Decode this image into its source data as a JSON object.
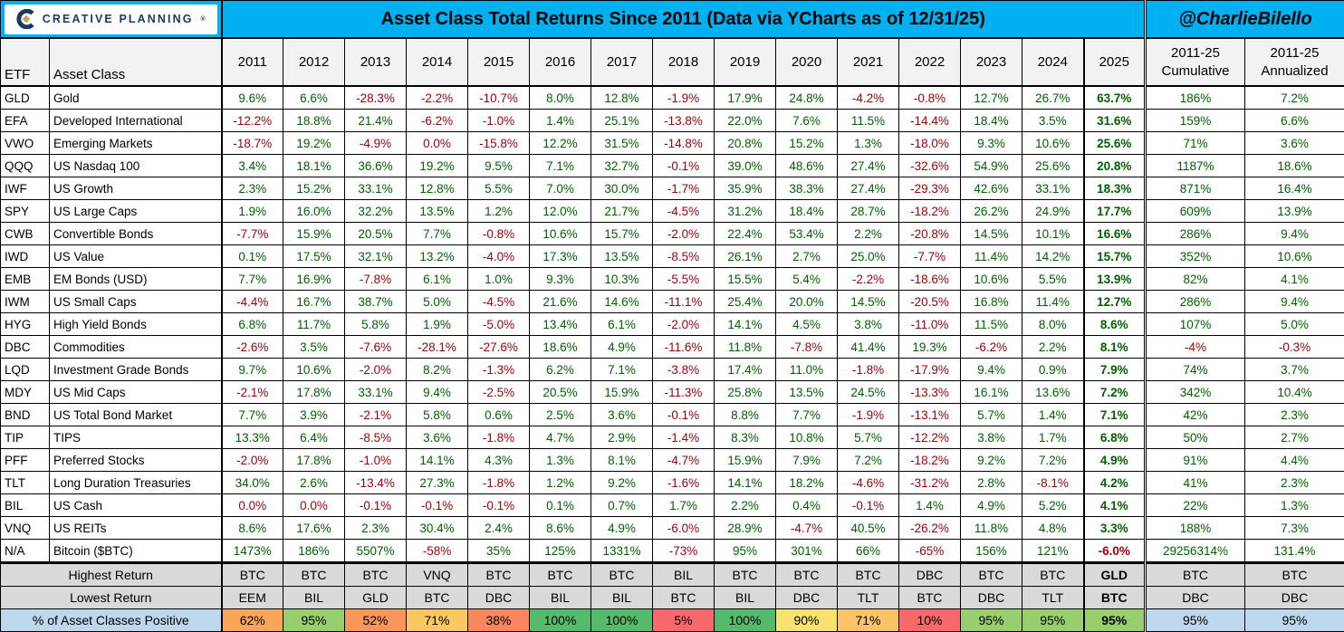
{
  "branding": {
    "logo_text": "CREATIVE PLANNING",
    "trademark": "®",
    "handle": "@CharlieBilello"
  },
  "colors": {
    "banner_blue": "#00B0F0",
    "positive_bg": "#C6EFCE",
    "positive_text": "#006100",
    "negative_bg": "#FFC7CE",
    "negative_text": "#9C0006",
    "header_gray": "#F2F2F2",
    "final_year_header_gray": "#A6A6A6",
    "footer_gray": "#D9D9D9",
    "footer_blue": "#BDD7EE",
    "logo_navy": "#1C3A5E",
    "logo_gold": "#C7A252"
  },
  "chart_data": {
    "type": "table",
    "title": "Asset Class Total Returns Since 2011 (Data via YCharts as of 12/31/25)",
    "columns": {
      "etf": "ETF",
      "asset_class": "Asset Class",
      "years": [
        "2011",
        "2012",
        "2013",
        "2014",
        "2015",
        "2016",
        "2017",
        "2018",
        "2019",
        "2020",
        "2021",
        "2022",
        "2023",
        "2024"
      ],
      "final_year": "2025",
      "cumulative": {
        "line1": "2011-25",
        "line2": "Cumulative"
      },
      "annualized": {
        "line1": "2011-25",
        "line2": "Annualized"
      }
    },
    "rows": [
      {
        "etf": "GLD",
        "asset_class": "Gold",
        "values": [
          "9.6%",
          "6.6%",
          "-28.3%",
          "-2.2%",
          "-10.7%",
          "8.0%",
          "12.8%",
          "-1.9%",
          "17.9%",
          "24.8%",
          "-4.2%",
          "-0.8%",
          "12.7%",
          "26.7%"
        ],
        "final": "63.7%",
        "cumulative": "186%",
        "annualized": "7.2%"
      },
      {
        "etf": "EFA",
        "asset_class": "Developed International",
        "values": [
          "-12.2%",
          "18.8%",
          "21.4%",
          "-6.2%",
          "-1.0%",
          "1.4%",
          "25.1%",
          "-13.8%",
          "22.0%",
          "7.6%",
          "11.5%",
          "-14.4%",
          "18.4%",
          "3.5%"
        ],
        "final": "31.6%",
        "cumulative": "159%",
        "annualized": "6.6%"
      },
      {
        "etf": "VWO",
        "asset_class": "Emerging Markets",
        "values": [
          "-18.7%",
          "19.2%",
          "-4.9%",
          "0.0%",
          "-15.8%",
          "12.2%",
          "31.5%",
          "-14.8%",
          "20.8%",
          "15.2%",
          "1.3%",
          "-18.0%",
          "9.3%",
          "10.6%"
        ],
        "final": "25.6%",
        "cumulative": "71%",
        "annualized": "3.6%"
      },
      {
        "etf": "QQQ",
        "asset_class": "US Nasdaq 100",
        "values": [
          "3.4%",
          "18.1%",
          "36.6%",
          "19.2%",
          "9.5%",
          "7.1%",
          "32.7%",
          "-0.1%",
          "39.0%",
          "48.6%",
          "27.4%",
          "-32.6%",
          "54.9%",
          "25.6%"
        ],
        "final": "20.8%",
        "cumulative": "1187%",
        "annualized": "18.6%"
      },
      {
        "etf": "IWF",
        "asset_class": "US Growth",
        "values": [
          "2.3%",
          "15.2%",
          "33.1%",
          "12.8%",
          "5.5%",
          "7.0%",
          "30.0%",
          "-1.7%",
          "35.9%",
          "38.3%",
          "27.4%",
          "-29.3%",
          "42.6%",
          "33.1%"
        ],
        "final": "18.3%",
        "cumulative": "871%",
        "annualized": "16.4%"
      },
      {
        "etf": "SPY",
        "asset_class": "US Large Caps",
        "values": [
          "1.9%",
          "16.0%",
          "32.2%",
          "13.5%",
          "1.2%",
          "12.0%",
          "21.7%",
          "-4.5%",
          "31.2%",
          "18.4%",
          "28.7%",
          "-18.2%",
          "26.2%",
          "24.9%"
        ],
        "final": "17.7%",
        "cumulative": "609%",
        "annualized": "13.9%"
      },
      {
        "etf": "CWB",
        "asset_class": "Convertible Bonds",
        "values": [
          "-7.7%",
          "15.9%",
          "20.5%",
          "7.7%",
          "-0.8%",
          "10.6%",
          "15.7%",
          "-2.0%",
          "22.4%",
          "53.4%",
          "2.2%",
          "-20.8%",
          "14.5%",
          "10.1%"
        ],
        "final": "16.6%",
        "cumulative": "286%",
        "annualized": "9.4%"
      },
      {
        "etf": "IWD",
        "asset_class": "US Value",
        "values": [
          "0.1%",
          "17.5%",
          "32.1%",
          "13.2%",
          "-4.0%",
          "17.3%",
          "13.5%",
          "-8.5%",
          "26.1%",
          "2.7%",
          "25.0%",
          "-7.7%",
          "11.4%",
          "14.2%"
        ],
        "final": "15.7%",
        "cumulative": "352%",
        "annualized": "10.6%"
      },
      {
        "etf": "EMB",
        "asset_class": "EM Bonds (USD)",
        "values": [
          "7.7%",
          "16.9%",
          "-7.8%",
          "6.1%",
          "1.0%",
          "9.3%",
          "10.3%",
          "-5.5%",
          "15.5%",
          "5.4%",
          "-2.2%",
          "-18.6%",
          "10.6%",
          "5.5%"
        ],
        "final": "13.9%",
        "cumulative": "82%",
        "annualized": "4.1%"
      },
      {
        "etf": "IWM",
        "asset_class": "US Small Caps",
        "values": [
          "-4.4%",
          "16.7%",
          "38.7%",
          "5.0%",
          "-4.5%",
          "21.6%",
          "14.6%",
          "-11.1%",
          "25.4%",
          "20.0%",
          "14.5%",
          "-20.5%",
          "16.8%",
          "11.4%"
        ],
        "final": "12.7%",
        "cumulative": "286%",
        "annualized": "9.4%"
      },
      {
        "etf": "HYG",
        "asset_class": "High Yield Bonds",
        "values": [
          "6.8%",
          "11.7%",
          "5.8%",
          "1.9%",
          "-5.0%",
          "13.4%",
          "6.1%",
          "-2.0%",
          "14.1%",
          "4.5%",
          "3.8%",
          "-11.0%",
          "11.5%",
          "8.0%"
        ],
        "final": "8.6%",
        "cumulative": "107%",
        "annualized": "5.0%"
      },
      {
        "etf": "DBC",
        "asset_class": "Commodities",
        "values": [
          "-2.6%",
          "3.5%",
          "-7.6%",
          "-28.1%",
          "-27.6%",
          "18.6%",
          "4.9%",
          "-11.6%",
          "11.8%",
          "-7.8%",
          "41.4%",
          "19.3%",
          "-6.2%",
          "2.2%"
        ],
        "final": "8.1%",
        "cumulative": "-4%",
        "annualized": "-0.3%"
      },
      {
        "etf": "LQD",
        "asset_class": "Investment Grade Bonds",
        "values": [
          "9.7%",
          "10.6%",
          "-2.0%",
          "8.2%",
          "-1.3%",
          "6.2%",
          "7.1%",
          "-3.8%",
          "17.4%",
          "11.0%",
          "-1.8%",
          "-17.9%",
          "9.4%",
          "0.9%"
        ],
        "final": "7.9%",
        "cumulative": "74%",
        "annualized": "3.7%"
      },
      {
        "etf": "MDY",
        "asset_class": "US Mid Caps",
        "values": [
          "-2.1%",
          "17.8%",
          "33.1%",
          "9.4%",
          "-2.5%",
          "20.5%",
          "15.9%",
          "-11.3%",
          "25.8%",
          "13.5%",
          "24.5%",
          "-13.3%",
          "16.1%",
          "13.6%"
        ],
        "final": "7.2%",
        "cumulative": "342%",
        "annualized": "10.4%"
      },
      {
        "etf": "BND",
        "asset_class": "US Total Bond Market",
        "values": [
          "7.7%",
          "3.9%",
          "-2.1%",
          "5.8%",
          "0.6%",
          "2.5%",
          "3.6%",
          "-0.1%",
          "8.8%",
          "7.7%",
          "-1.9%",
          "-13.1%",
          "5.7%",
          "1.4%"
        ],
        "final": "7.1%",
        "cumulative": "42%",
        "annualized": "2.3%"
      },
      {
        "etf": "TIP",
        "asset_class": "TIPS",
        "values": [
          "13.3%",
          "6.4%",
          "-8.5%",
          "3.6%",
          "-1.8%",
          "4.7%",
          "2.9%",
          "-1.4%",
          "8.3%",
          "10.8%",
          "5.7%",
          "-12.2%",
          "3.8%",
          "1.7%"
        ],
        "final": "6.8%",
        "cumulative": "50%",
        "annualized": "2.7%"
      },
      {
        "etf": "PFF",
        "asset_class": "Preferred Stocks",
        "values": [
          "-2.0%",
          "17.8%",
          "-1.0%",
          "14.1%",
          "4.3%",
          "1.3%",
          "8.1%",
          "-4.7%",
          "15.9%",
          "7.9%",
          "7.2%",
          "-18.2%",
          "9.2%",
          "7.2%"
        ],
        "final": "4.9%",
        "cumulative": "91%",
        "annualized": "4.4%"
      },
      {
        "etf": "TLT",
        "asset_class": "Long Duration Treasuries",
        "values": [
          "34.0%",
          "2.6%",
          "-13.4%",
          "27.3%",
          "-1.8%",
          "1.2%",
          "9.2%",
          "-1.6%",
          "14.1%",
          "18.2%",
          "-4.6%",
          "-31.2%",
          "2.8%",
          "-8.1%"
        ],
        "final": "4.2%",
        "cumulative": "41%",
        "annualized": "2.3%"
      },
      {
        "etf": "BIL",
        "asset_class": "US Cash",
        "values": [
          "0.0%",
          "0.0%",
          "-0.1%",
          "-0.1%",
          "-0.1%",
          "0.1%",
          "0.7%",
          "1.7%",
          "2.2%",
          "0.4%",
          "-0.1%",
          "1.4%",
          "4.9%",
          "5.2%"
        ],
        "final": "4.1%",
        "cumulative": "22%",
        "annualized": "1.3%"
      },
      {
        "etf": "VNQ",
        "asset_class": "US REITs",
        "values": [
          "8.6%",
          "17.6%",
          "2.3%",
          "30.4%",
          "2.4%",
          "8.6%",
          "4.9%",
          "-6.0%",
          "28.9%",
          "-4.7%",
          "40.5%",
          "-26.2%",
          "11.8%",
          "4.8%"
        ],
        "final": "3.3%",
        "cumulative": "188%",
        "annualized": "7.3%"
      },
      {
        "etf": "N/A",
        "asset_class": "Bitcoin ($BTC)",
        "values": [
          "1473%",
          "186%",
          "5507%",
          "-58%",
          "35%",
          "125%",
          "1331%",
          "-73%",
          "95%",
          "301%",
          "66%",
          "-65%",
          "156%",
          "121%"
        ],
        "final": "-6.0%",
        "cumulative": "29256314%",
        "annualized": "131.4%"
      }
    ],
    "footer": {
      "highest": {
        "label": "Highest Return",
        "values": [
          "BTC",
          "BTC",
          "BTC",
          "VNQ",
          "BTC",
          "BTC",
          "BTC",
          "BIL",
          "BTC",
          "BTC",
          "BTC",
          "DBC",
          "BTC",
          "BTC",
          "GLD",
          "BTC",
          "BTC"
        ]
      },
      "lowest": {
        "label": "Lowest Return",
        "values": [
          "EEM",
          "BIL",
          "GLD",
          "BTC",
          "DBC",
          "BIL",
          "BIL",
          "BTC",
          "BIL",
          "DBC",
          "TLT",
          "BTC",
          "DBC",
          "TLT",
          "BTC",
          "DBC",
          "DBC"
        ]
      },
      "positive": {
        "label": "% of Asset Classes Positive",
        "values": [
          {
            "text": "62%",
            "bg": "#F9A65A"
          },
          {
            "text": "95%",
            "bg": "#97CE6E"
          },
          {
            "text": "52%",
            "bg": "#F9975A"
          },
          {
            "text": "71%",
            "bg": "#FBC763"
          },
          {
            "text": "38%",
            "bg": "#F8875F"
          },
          {
            "text": "100%",
            "bg": "#56BA6C"
          },
          {
            "text": "100%",
            "bg": "#56BA6C"
          },
          {
            "text": "5%",
            "bg": "#F8696B"
          },
          {
            "text": "100%",
            "bg": "#56BA6C"
          },
          {
            "text": "90%",
            "bg": "#F8E16E"
          },
          {
            "text": "71%",
            "bg": "#FBC367"
          },
          {
            "text": "10%",
            "bg": "#F8696B"
          },
          {
            "text": "95%",
            "bg": "#97CE6E"
          },
          {
            "text": "95%",
            "bg": "#97CE6E"
          },
          {
            "text": "95%",
            "bg": "#97CE6E"
          },
          {
            "text": "95%",
            "bg": "#BDD7EE"
          },
          {
            "text": "95%",
            "bg": "#BDD7EE"
          }
        ]
      }
    }
  }
}
